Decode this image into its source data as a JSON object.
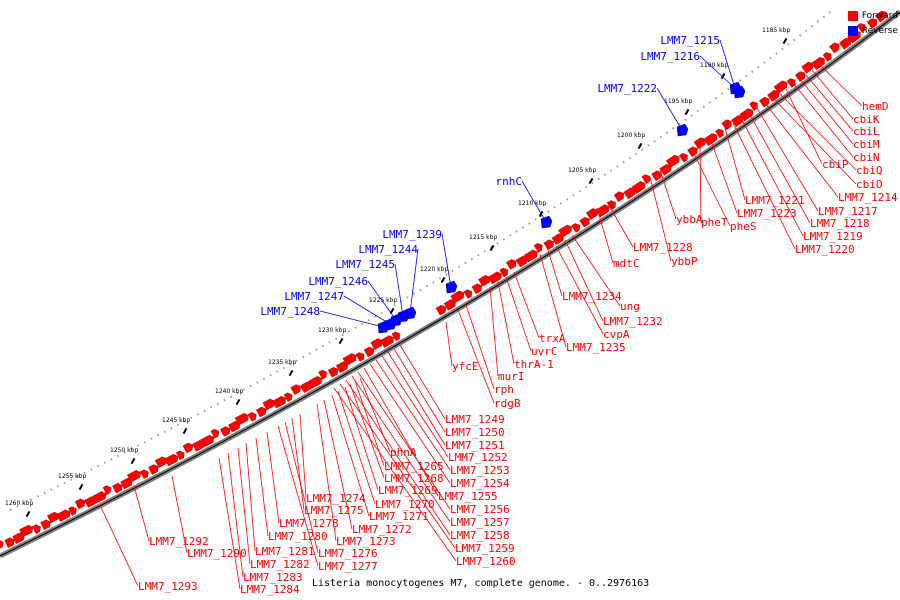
{
  "legend": {
    "forward_label": "Forward",
    "reverse_label": "Reverse",
    "forward_color": "#ff0000",
    "reverse_color": "#0000ff"
  },
  "caption": "Listeria monocytogenes M7, complete genome. - 0..2976163",
  "kbp_ticks": [
    "1185 kbp",
    "1190 kbp",
    "1195 kbp",
    "1200 kbp",
    "1205 kbp",
    "1210 kbp",
    "1215 kbp",
    "1220 kbp",
    "1225 kbp",
    "1230 kbp",
    "1235 kbp",
    "1240 kbp",
    "1245 kbp",
    "1250 kbp",
    "1255 kbp",
    "1260 kbp"
  ],
  "reverse_genes": [
    "LMM7_1215",
    "LMM7_1216",
    "LMM7_1222",
    "rnhC",
    "LMM7_1239",
    "LMM7_1244",
    "LMM7_1245",
    "LMM7_1246",
    "LMM7_1247",
    "LMM7_1248"
  ],
  "forward_genes": [
    "hemD",
    "cbiK",
    "cbiL",
    "cbiM",
    "cbiN",
    "cbiP",
    "cbiQ",
    "cbiO",
    "LMM7_1214",
    "LMM7_1217",
    "LMM7_1218",
    "LMM7_1219",
    "LMM7_1220",
    "LMM7_1221",
    "LMM7_1223",
    "pheT",
    "pheS",
    "ybbA",
    "ybbP",
    "LMM7_1228",
    "mdtC",
    "ung",
    "LMM7_1232",
    "LMM7_1234",
    "cvpA",
    "LMM7_1235",
    "trxA",
    "uvrC",
    "thrA-1",
    "murI",
    "yfcE",
    "rph",
    "rdgB",
    "LMM7_1249",
    "LMM7_1250",
    "LMM7_1251",
    "LMM7_1252",
    "LMM7_1253",
    "LMM7_1254",
    "LMM7_1255",
    "LMM7_1256",
    "LMM7_1257",
    "LMM7_1258",
    "LMM7_1259",
    "LMM7_1260",
    "phnA",
    "LMM7_1265",
    "LMM7_1268",
    "LMM7_1269",
    "LMM7_1270",
    "LMM7_1271",
    "LMM7_1272",
    "LMM7_1273",
    "LMM7_1274",
    "LMM7_1275",
    "LMM7_1276",
    "LMM7_1277",
    "LMM7_1278",
    "LMM7_1280",
    "LMM7_1281",
    "LMM7_1282",
    "LMM7_1283",
    "LMM7_1284",
    "LMM7_1290",
    "LMM7_1292",
    "LMM7_1293"
  ]
}
